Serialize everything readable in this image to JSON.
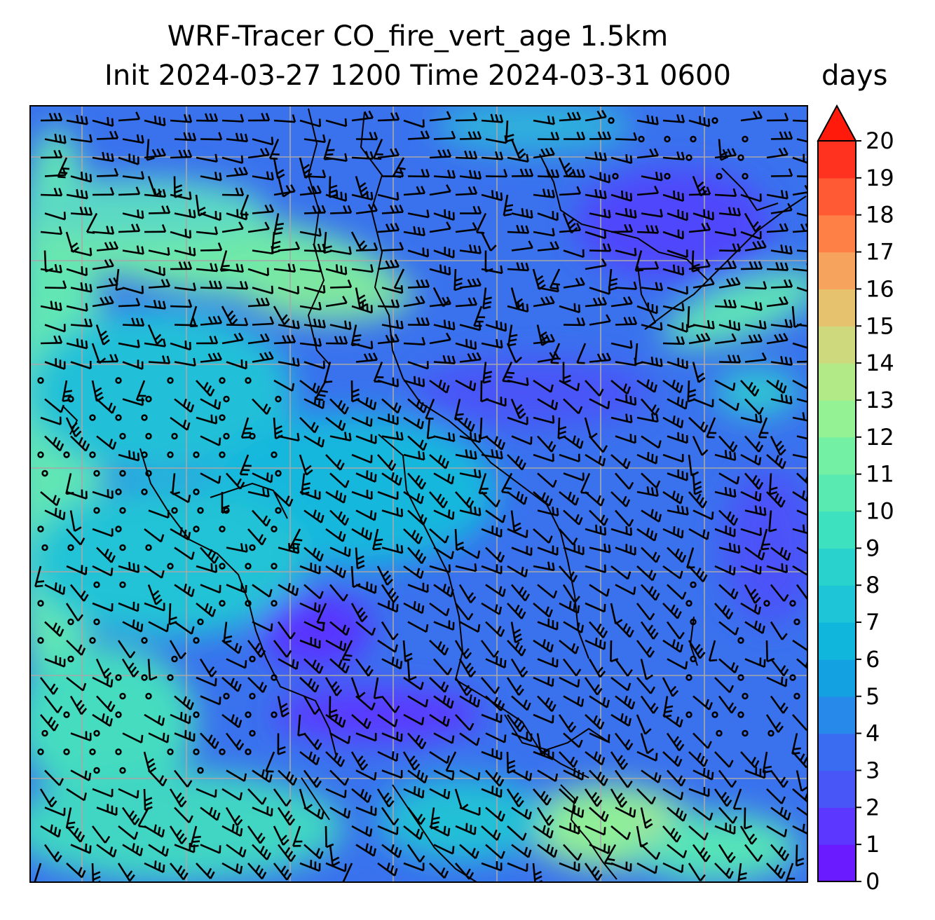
{
  "title": "WRF-Tracer CO_fire_vert_age 1.5km",
  "subtitle": "Init 2024-03-27 1200 Time 2024-03-31 0600",
  "colorbar": {
    "units": "days",
    "ticks": [
      "0",
      "1",
      "2",
      "3",
      "4",
      "5",
      "6",
      "7",
      "8",
      "9",
      "10",
      "11",
      "12",
      "13",
      "14",
      "15",
      "16",
      "17",
      "18",
      "19",
      "20"
    ],
    "extend": "max",
    "colors": [
      "#6a1bff",
      "#5b37ff",
      "#4856f8",
      "#3a6cf2",
      "#2789ea",
      "#13a1e1",
      "#10b6db",
      "#1ec5d6",
      "#29d2cc",
      "#3ee1bf",
      "#58eab1",
      "#73f0a3",
      "#94f294",
      "#b2ea88",
      "#cdd97c",
      "#e6c16e",
      "#f6a35d",
      "#ff8047",
      "#ff5a33",
      "#ff3220",
      "#ff0a0a"
    ],
    "extend_color": "#ff1a0c"
  },
  "map": {
    "gridlines": "on",
    "wind_barbs": "on",
    "coastlines": "on"
  }
}
